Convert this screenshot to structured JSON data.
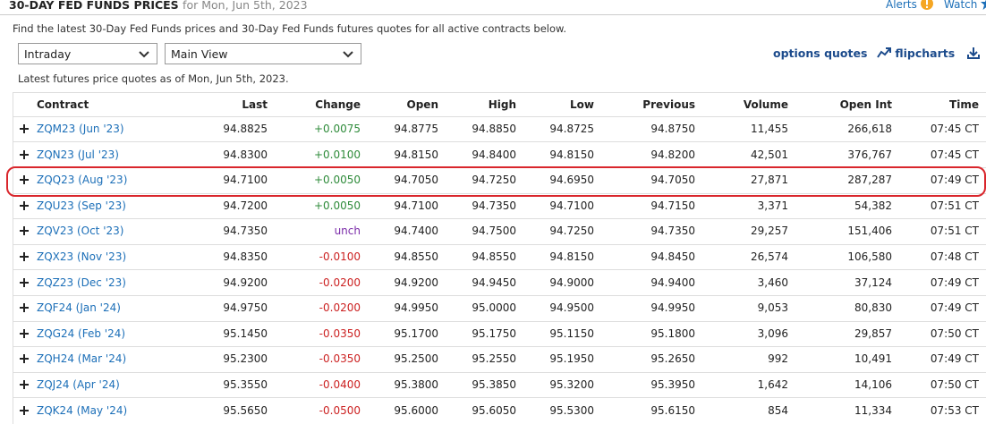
{
  "header": {
    "title": "30-DAY FED FUNDS PRICES",
    "subtitle": "for Mon, Jun 5th, 2023",
    "alerts": "Alerts",
    "watch": "Watch"
  },
  "description": "Find the latest 30-Day Fed Funds prices and 30-Day Fed Funds futures quotes for all active contracts below.",
  "controls": {
    "selects": [
      "Intraday",
      "Main View"
    ],
    "links": [
      "options quotes",
      "flipcharts"
    ]
  },
  "as_of": "Latest futures price quotes as of Mon, Jun 5th, 2023.",
  "table": {
    "columns": [
      "Contract",
      "Last",
      "Change",
      "Open",
      "High",
      "Low",
      "Previous",
      "Volume",
      "Open Int",
      "Time"
    ],
    "rows": [
      [
        "ZQM23 (Jun '23)",
        "94.8825",
        "+0.0075",
        "94.8775",
        "94.8850",
        "94.8725",
        "94.8750",
        "11,455",
        "266,618",
        "07:45 CT"
      ],
      [
        "ZQN23 (Jul '23)",
        "94.8300",
        "+0.0100",
        "94.8150",
        "94.8400",
        "94.8150",
        "94.8200",
        "42,501",
        "376,767",
        "07:45 CT"
      ],
      [
        "ZQQ23 (Aug '23)",
        "94.7100",
        "+0.0050",
        "94.7050",
        "94.7250",
        "94.6950",
        "94.7050",
        "27,871",
        "287,287",
        "07:49 CT"
      ],
      [
        "ZQU23 (Sep '23)",
        "94.7200",
        "+0.0050",
        "94.7100",
        "94.7350",
        "94.7100",
        "94.7150",
        "3,371",
        "54,382",
        "07:51 CT"
      ],
      [
        "ZQV23 (Oct '23)",
        "94.7350",
        "unch",
        "94.7400",
        "94.7500",
        "94.7250",
        "94.7350",
        "29,257",
        "151,406",
        "07:51 CT"
      ],
      [
        "ZQX23 (Nov '23)",
        "94.8350",
        "-0.0100",
        "94.8550",
        "94.8550",
        "94.8150",
        "94.8450",
        "26,574",
        "106,580",
        "07:48 CT"
      ],
      [
        "ZQZ23 (Dec '23)",
        "94.9200",
        "-0.0200",
        "94.9200",
        "94.9450",
        "94.9000",
        "94.9400",
        "3,460",
        "37,124",
        "07:49 CT"
      ],
      [
        "ZQF24 (Jan '24)",
        "94.9750",
        "-0.0200",
        "94.9950",
        "95.0000",
        "94.9500",
        "94.9950",
        "9,053",
        "80,830",
        "07:49 CT"
      ],
      [
        "ZQG24 (Feb '24)",
        "95.1450",
        "-0.0350",
        "95.1700",
        "95.1750",
        "95.1150",
        "95.1800",
        "3,096",
        "29,857",
        "07:50 CT"
      ],
      [
        "ZQH24 (Mar '24)",
        "95.2300",
        "-0.0350",
        "95.2500",
        "95.2550",
        "95.1950",
        "95.2650",
        "992",
        "10,491",
        "07:49 CT"
      ],
      [
        "ZQJ24 (Apr '24)",
        "95.3550",
        "-0.0400",
        "95.3800",
        "95.3850",
        "95.3200",
        "95.3950",
        "1,642",
        "14,106",
        "07:50 CT"
      ],
      [
        "ZQK24 (May '24)",
        "95.5650",
        "-0.0500",
        "95.6000",
        "95.6050",
        "95.5300",
        "95.6150",
        "854",
        "11,334",
        "07:53 CT"
      ]
    ]
  }
}
